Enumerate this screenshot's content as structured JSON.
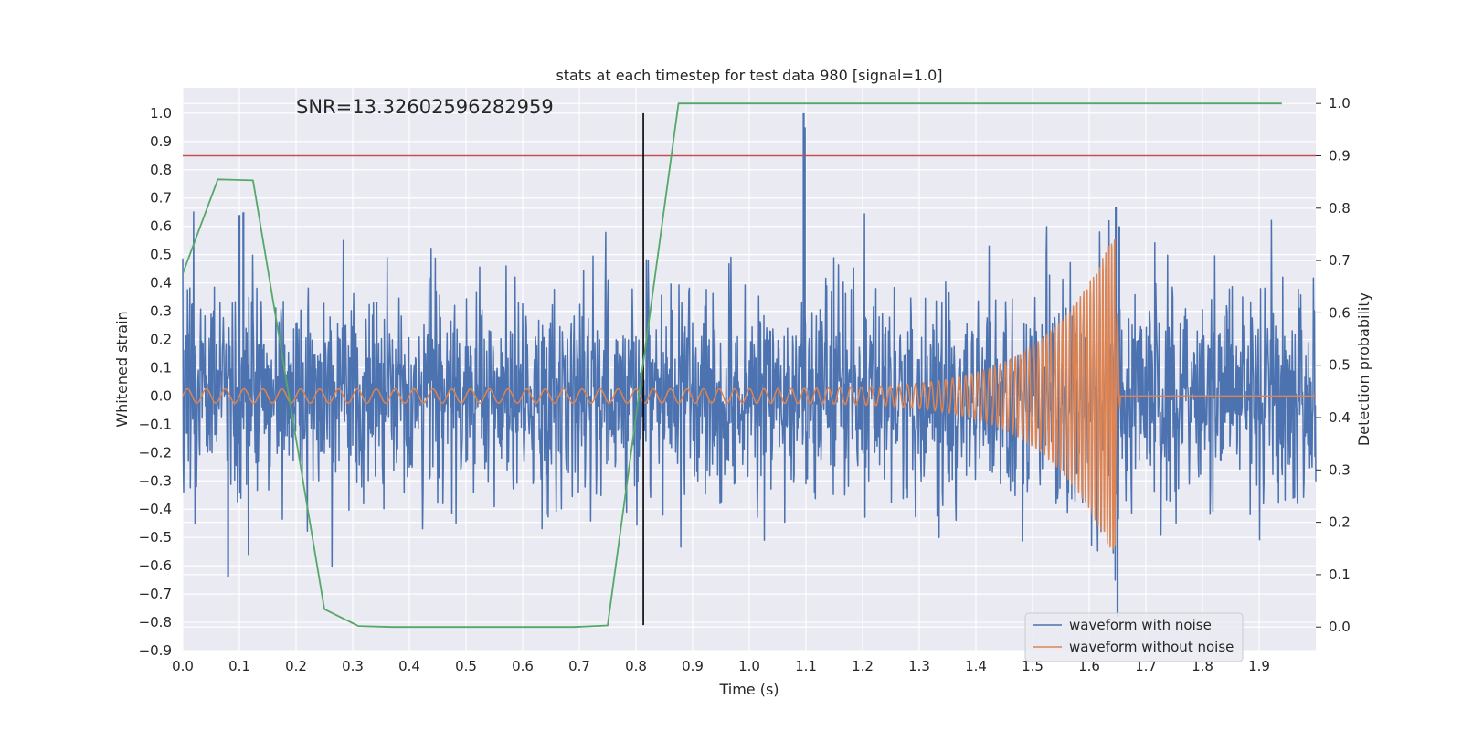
{
  "chart_data": {
    "type": "line",
    "title": "stats at each timestep for test data 980 [signal=1.0]",
    "xlabel": "Time (s)",
    "ylabel_left": "Whitened strain",
    "ylabel_right": "Detection probability",
    "xlim": [
      0.0,
      2.0
    ],
    "ylim_left": [
      -0.9,
      1.09
    ],
    "ylim_right": [
      -0.045,
      1.03
    ],
    "x_ticks": [
      "0.0",
      "0.1",
      "0.2",
      "0.3",
      "0.4",
      "0.5",
      "0.6",
      "0.7",
      "0.8",
      "0.9",
      "1.0",
      "1.1",
      "1.2",
      "1.3",
      "1.4",
      "1.5",
      "1.6",
      "1.7",
      "1.8",
      "1.9"
    ],
    "y_left_ticks": [
      "−0.9",
      "−0.8",
      "−0.7",
      "−0.6",
      "−0.5",
      "−0.4",
      "−0.3",
      "−0.2",
      "−0.1",
      "0.0",
      "0.1",
      "0.2",
      "0.3",
      "0.4",
      "0.5",
      "0.6",
      "0.7",
      "0.8",
      "0.9",
      "1.0"
    ],
    "y_right_ticks": [
      "0.0",
      "0.1",
      "0.2",
      "0.3",
      "0.4",
      "0.5",
      "0.6",
      "0.7",
      "0.8",
      "0.9",
      "1.0"
    ],
    "grid": true,
    "annotation": "SNR=13.32602596282959",
    "legend": {
      "placement": "lower-right",
      "entries": [
        "waveform with noise",
        "waveform without noise"
      ]
    },
    "colors": {
      "noise": "#4c72b0",
      "clean": "#dd8452",
      "probability": "#55a868",
      "threshold": "#c44e52",
      "marker": "#000000",
      "background": "#eaeaf2"
    },
    "threshold_probability": 0.9,
    "vertical_marker_time": 0.813,
    "vertical_marker_range": [
      -0.81,
      1.0
    ],
    "detection_probability": {
      "x": [
        0.0,
        0.062,
        0.124,
        0.25,
        0.31,
        0.37,
        0.5,
        0.62,
        0.69,
        0.75,
        0.875,
        1.0,
        1.25,
        1.5,
        1.75,
        1.94
      ],
      "y": [
        0.675,
        0.855,
        0.853,
        0.034,
        0.002,
        0.0,
        0.0,
        0.0,
        0.0,
        0.003,
        1.0,
        1.0,
        1.0,
        1.0,
        1.0,
        1.0
      ]
    },
    "noise_envelope": {
      "t": [
        0.0,
        1.6,
        1.64,
        1.66,
        2.0
      ],
      "amplitude": [
        0.34,
        0.34,
        0.55,
        0.34,
        0.34
      ]
    },
    "noise_spikes": {
      "x": [
        0.08,
        0.1,
        0.107,
        1.096,
        1.098,
        1.647,
        1.65,
        1.653
      ],
      "y": [
        -0.64,
        0.64,
        0.65,
        1.0,
        0.95,
        0.67,
        -0.78,
        0.6
      ]
    },
    "clean_waveform": {
      "frequency_start_hz": 30,
      "frequency_end_hz": 200,
      "amplitude_start": 0.025,
      "amplitude_peak": 0.58,
      "merger_time": 1.645,
      "ringdown_end": 1.655
    }
  }
}
